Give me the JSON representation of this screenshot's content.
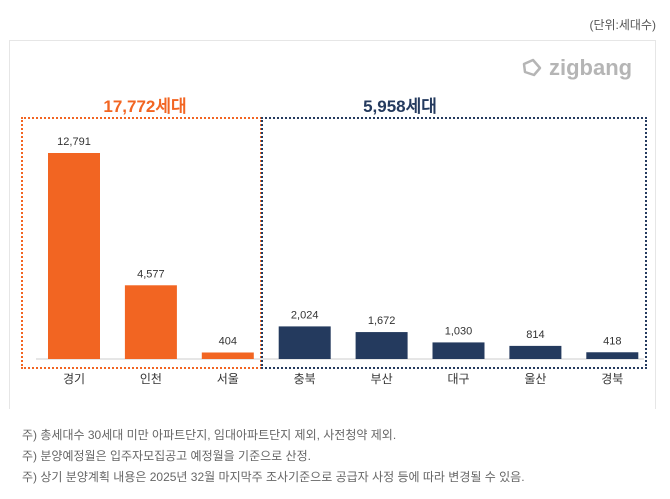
{
  "unit_label": "(단위:세대수)",
  "logo": "zigbang",
  "colors": {
    "orange": "#f26522",
    "navy": "#243a5e"
  },
  "groups": [
    {
      "title": "17,772세대",
      "color": "#f26522"
    },
    {
      "title": "5,958세대",
      "color": "#243a5e"
    }
  ],
  "chart_data": {
    "type": "bar",
    "categories": [
      "경기",
      "인천",
      "서울",
      "충북",
      "부산",
      "대구",
      "울산",
      "경북"
    ],
    "values": [
      12791,
      4577,
      404,
      2024,
      1672,
      1030,
      814,
      418
    ],
    "data_labels": [
      "12,791",
      "4,577",
      "404",
      "2,024",
      "1,672",
      "1,030",
      "814",
      "418"
    ],
    "group_index": [
      0,
      0,
      0,
      1,
      1,
      1,
      1,
      1
    ],
    "title": "",
    "xlabel": "",
    "ylabel": "",
    "grid": false
  },
  "notes": [
    "주) 총세대수 30세대 미만 아파트단지, 임대아파트단지 제외, 사전청약 제외.",
    "주) 분양예정월은 입주자모집공고 예정월을 기준으로 산정.",
    "주) 상기 분양계획 내용은 2025년 32월  마지막주  조사기준으로 공급자 사정 등에 따라 변경될 수 있음."
  ]
}
